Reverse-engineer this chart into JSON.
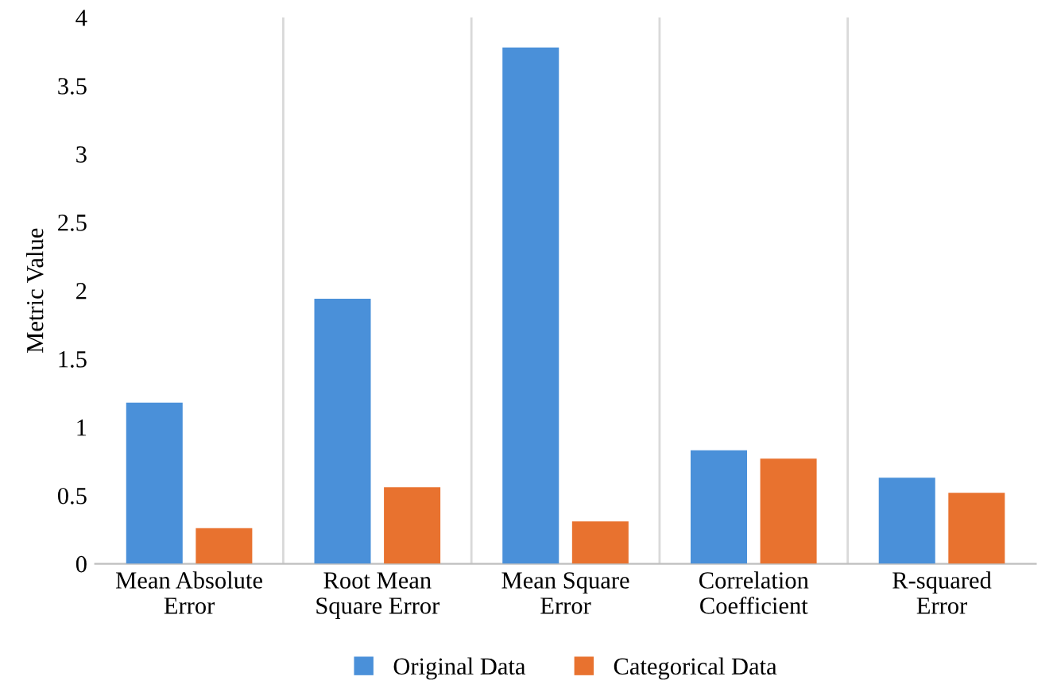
{
  "chart_data": {
    "type": "bar",
    "ylabel": "Metric Value",
    "categories": [
      "Mean Absolute\nError",
      "Root Mean\nSquare Error",
      "Mean Square\nError",
      "Correlation\nCoefficient",
      "R-squared\nError"
    ],
    "series": [
      {
        "name": "Original Data",
        "color": "#4a90d9",
        "values": [
          1.18,
          1.94,
          3.78,
          0.83,
          0.63
        ]
      },
      {
        "name": "Categorical Data",
        "color": "#e8722f",
        "values": [
          0.26,
          0.56,
          0.31,
          0.77,
          0.52
        ]
      }
    ],
    "ylim": [
      0,
      4
    ],
    "yticks": [
      0,
      0.5,
      1,
      1.5,
      2,
      2.5,
      3,
      3.5,
      4
    ],
    "grid": "x",
    "legend": "bottom"
  }
}
